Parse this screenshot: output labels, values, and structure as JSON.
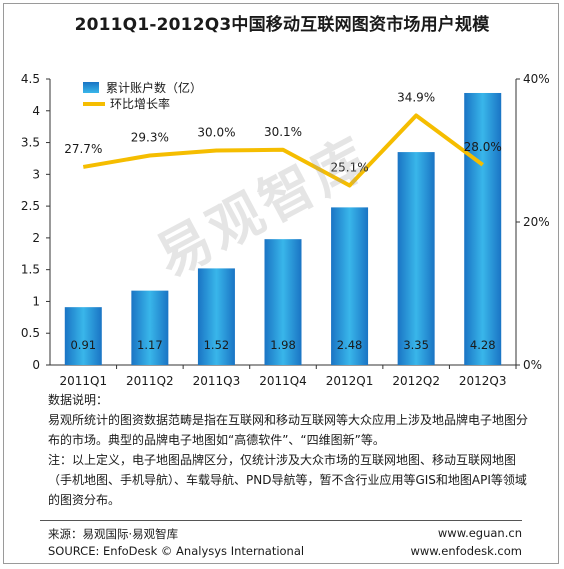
{
  "title": "2011Q1-2012Q3中国移动互联网图资市场用户规模",
  "chart_data": {
    "type": "bar+line",
    "title": "2011Q1-2012Q3中国移动互联网图资市场用户规模",
    "categories": [
      "2011Q1",
      "2011Q2",
      "2011Q3",
      "2011Q4",
      "2012Q1",
      "2012Q2",
      "2012Q3"
    ],
    "series": [
      {
        "name": "累计账户数（亿）",
        "type": "bar",
        "axis": "left",
        "values": [
          0.91,
          1.17,
          1.52,
          1.98,
          2.48,
          3.35,
          4.28
        ],
        "labels": [
          "0.91",
          "1.17",
          "1.52",
          "1.98",
          "2.48",
          "3.35",
          "4.28"
        ],
        "color": "#1f8fd0"
      },
      {
        "name": "环比增长率",
        "type": "line",
        "axis": "right",
        "values": [
          27.7,
          29.3,
          30.0,
          30.1,
          25.1,
          34.9,
          28.0
        ],
        "labels": [
          "27.7%",
          "29.3%",
          "30.0%",
          "30.1%",
          "25.1%",
          "34.9%",
          "28.0%"
        ],
        "color": "#f5bd00"
      }
    ],
    "left_axis": {
      "ylim": [
        0,
        4.5
      ],
      "ticks": [
        "0",
        "0.5",
        "1",
        "1.5",
        "2",
        "2.5",
        "3",
        "3.5",
        "4",
        "4.5"
      ]
    },
    "right_axis": {
      "ylim": [
        0,
        40
      ],
      "ticks": [
        "0%",
        "20%",
        "40%"
      ]
    },
    "legend_position": "top-left",
    "grid": false
  },
  "watermark": "易观智库",
  "notes": {
    "heading": "数据说明：",
    "line1": "易观所统计的图资数据范畴是指在互联网和移动互联网等大众应用上涉及地品牌电子地图分布的市场。典型的品牌电子地图如“高德软件”、“四维图新”等。",
    "line2": "注：以上定义，电子地图品牌区分，仅统计涉及大众市场的互联网地图、移动互联网地图（手机地图、手机导航）、车载导航、PND导航等，暂不含行业应用等GIS和地图API等领域的图资分布。"
  },
  "footer": {
    "source_cn": "来源：易观国际·易观智库",
    "url_cn": "www.eguan.cn",
    "source_en": "SOURCE: EnfoDesk © Analysys International",
    "url_en": "www.enfodesk.com"
  }
}
